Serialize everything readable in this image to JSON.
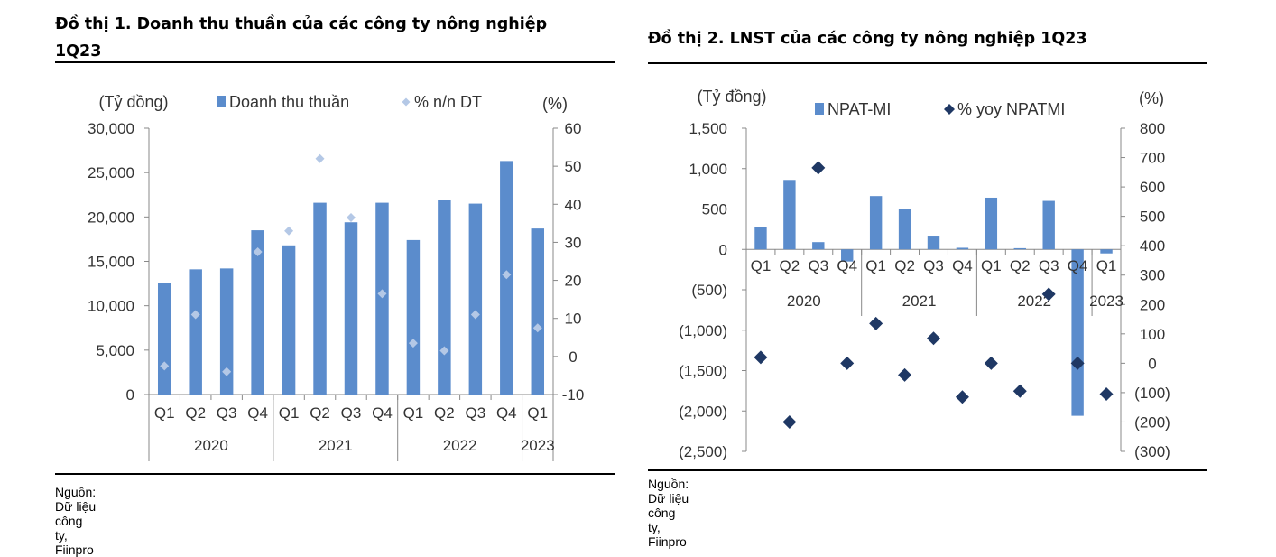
{
  "charts": {
    "chart1": {
      "title_line1": "Đồ thị 1. Doanh thu thuần của các công ty nông nghiệp",
      "title_line2": "1Q23",
      "source": "Nguồn: Dữ liệu công ty, Fiinpro"
    },
    "chart2": {
      "title": "Đồ thị 2. LNST của các công ty nông nghiệp 1Q23",
      "source": "Nguồn: Dữ liệu công ty, Fiinpro"
    }
  },
  "colors": {
    "bar": "#5b8ccc",
    "diamond_light": "#b4c8e6",
    "diamond_dark": "#1f3864",
    "axis": "#888888",
    "text": "#333333"
  },
  "chart_data": [
    {
      "type": "bar",
      "title": "Đồ thị 1. Doanh thu thuần của các công ty nông nghiệp 1Q23",
      "categories": [
        "Q1",
        "Q2",
        "Q3",
        "Q4",
        "Q1",
        "Q2",
        "Q3",
        "Q4",
        "Q1",
        "Q2",
        "Q3",
        "Q4",
        "Q1"
      ],
      "groups": [
        {
          "label": "2020",
          "count": 4
        },
        {
          "label": "2021",
          "count": 4
        },
        {
          "label": "2022",
          "count": 4
        },
        {
          "label": "2023",
          "count": 1
        }
      ],
      "left_unit": "(Tỷ đồng)",
      "right_unit": "(%)",
      "ylim_left": [
        0,
        30000
      ],
      "left_ticks": [
        0,
        5000,
        10000,
        15000,
        20000,
        25000,
        30000
      ],
      "left_tick_labels": [
        "0",
        "5,000",
        "10,000",
        "15,000",
        "20,000",
        "25,000",
        "30,000"
      ],
      "ylim_right": [
        -10,
        60
      ],
      "right_ticks": [
        -10,
        0,
        10,
        20,
        30,
        40,
        50,
        60
      ],
      "right_tick_labels": [
        "-10",
        "0",
        "10",
        "20",
        "30",
        "40",
        "50",
        "60"
      ],
      "series": [
        {
          "name": "Doanh thu thuần",
          "kind": "bar",
          "axis": "left",
          "values": [
            12600,
            14100,
            14200,
            18500,
            16800,
            21600,
            19400,
            21600,
            17400,
            21900,
            21500,
            26300,
            18700
          ]
        },
        {
          "name": "% n/n DT",
          "kind": "diamond",
          "axis": "right",
          "style": "light",
          "values": [
            -2.5,
            11,
            -4,
            27.5,
            33,
            52,
            36.5,
            16.5,
            3.5,
            1.5,
            11,
            21.5,
            7.5
          ]
        }
      ]
    },
    {
      "type": "bar",
      "title": "Đồ thị 2. LNST của các công ty nông nghiệp 1Q23",
      "categories": [
        "Q1",
        "Q2",
        "Q3",
        "Q4",
        "Q1",
        "Q2",
        "Q3",
        "Q4",
        "Q1",
        "Q2",
        "Q3",
        "Q4",
        "Q1"
      ],
      "groups": [
        {
          "label": "2020",
          "count": 4
        },
        {
          "label": "2021",
          "count": 4
        },
        {
          "label": "2022",
          "count": 4
        },
        {
          "label": "2023",
          "count": 1
        }
      ],
      "left_unit": "(Tỷ đồng)",
      "right_unit": "(%)",
      "ylim_left": [
        -2500,
        1500
      ],
      "left_ticks": [
        -2500,
        -2000,
        -1500,
        -1000,
        -500,
        0,
        500,
        1000,
        1500
      ],
      "left_tick_labels": [
        "(2,500)",
        "(2,000)",
        "(1,500)",
        "(1,000)",
        "(500)",
        "0",
        "500",
        "1,000",
        "1,500"
      ],
      "ylim_right": [
        -300,
        800
      ],
      "right_ticks": [
        -300,
        -200,
        -100,
        0,
        100,
        200,
        300,
        400,
        500,
        600,
        700,
        800
      ],
      "right_tick_labels": [
        "(300)",
        "(200)",
        "(100)",
        "0",
        "100",
        "200",
        "300",
        "400",
        "500",
        "600",
        "700",
        "800"
      ],
      "series": [
        {
          "name": "NPAT-MI",
          "kind": "bar",
          "axis": "left",
          "values": [
            280,
            860,
            90,
            -150,
            660,
            500,
            170,
            20,
            640,
            15,
            600,
            -2060,
            -50
          ]
        },
        {
          "name": "% yoy NPATMI",
          "kind": "diamond",
          "axis": "right",
          "style": "dark",
          "values": [
            20,
            -200,
            665,
            0,
            135,
            -40,
            85,
            -115,
            0,
            -95,
            235,
            0,
            -105
          ]
        }
      ]
    }
  ]
}
